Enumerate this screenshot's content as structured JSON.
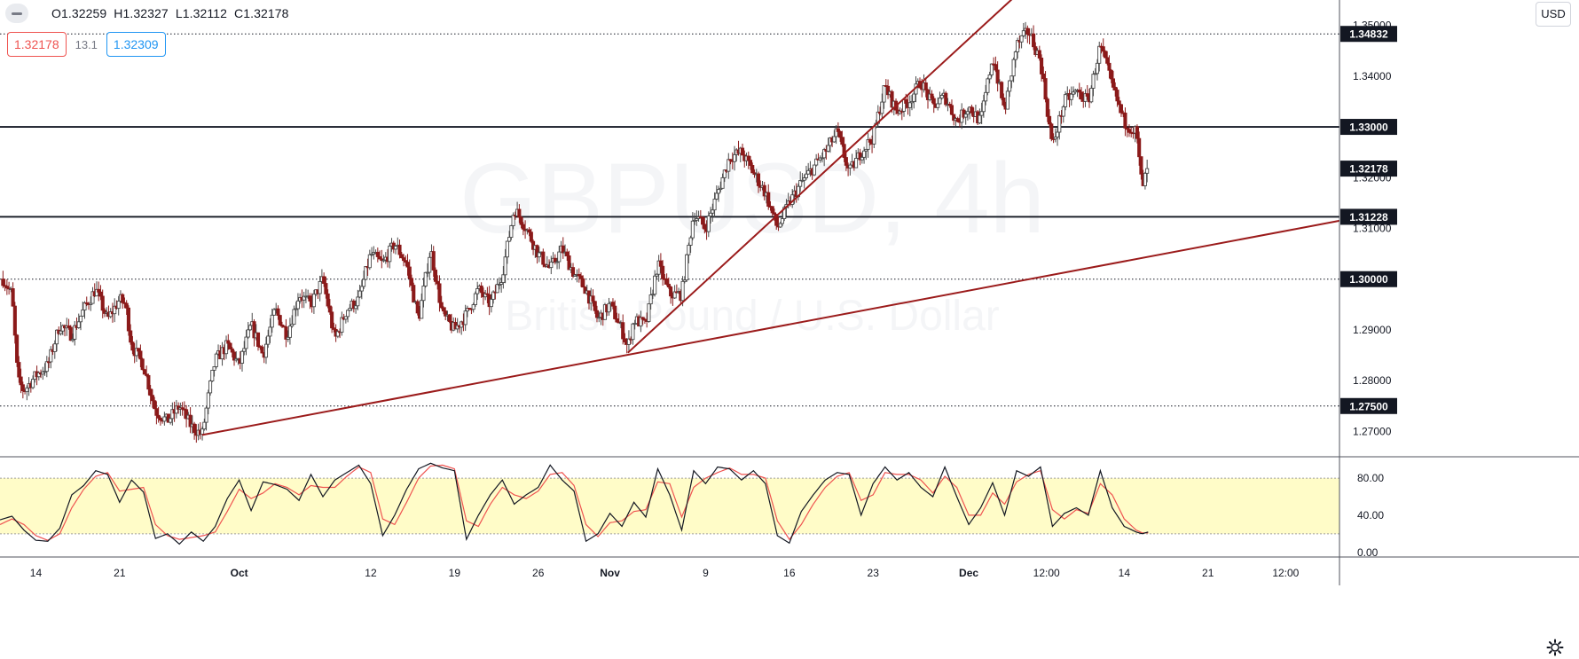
{
  "header": {
    "ohlc": {
      "open": "O1.32259",
      "high": "H1.32327",
      "low": "L1.32112",
      "close": "C1.32178"
    },
    "sell_price": "1.32178",
    "spread": "13.1",
    "buy_price": "1.32309"
  },
  "currency_button": "USD",
  "colors": {
    "up": "#26a69a",
    "down": "#ef5350",
    "candle": "#4a4a4a",
    "candle_bear": "#8b1a1a",
    "trendline": "#9b1b1b",
    "stoch_k": "#131722",
    "stoch_d": "#ef5350",
    "stoch_band": "#fffcc8"
  },
  "chart_data": [
    {
      "type": "candlestick",
      "title": "",
      "y_axis": {
        "min": 1.265,
        "max": 1.355,
        "ticks": [
          "1.35000",
          "1.34000",
          "1.33000",
          "1.32000",
          "1.31000",
          "1.30000",
          "1.29000",
          "1.28000",
          "1.27000"
        ]
      },
      "x_axis": {
        "ticks": [
          {
            "label": "14",
            "day": 0
          },
          {
            "label": "21",
            "day": 7
          },
          {
            "label": "Oct",
            "day": 17
          },
          {
            "label": "12",
            "day": 28
          },
          {
            "label": "19",
            "day": 35
          },
          {
            "label": "26",
            "day": 42
          },
          {
            "label": "Nov",
            "day": 48
          },
          {
            "label": "9",
            "day": 56
          },
          {
            "label": "16",
            "day": 63
          },
          {
            "label": "23",
            "day": 70
          },
          {
            "label": "Dec",
            "day": 78
          },
          {
            "label": "12:00",
            "day": 84.5
          },
          {
            "label": "14",
            "day": 91
          },
          {
            "label": "21",
            "day": 98
          },
          {
            "label": "12:00",
            "day": 104.5
          }
        ],
        "range_days": [
          -3,
          109
        ]
      },
      "horizontal_levels": [
        {
          "price": 1.34832,
          "label": "1.34832",
          "style": "dotted"
        },
        {
          "price": 1.33,
          "label": "1.33000",
          "style": "solid"
        },
        {
          "price": 1.31228,
          "label": "1.31228",
          "style": "solid"
        },
        {
          "price": 1.3,
          "label": "1.30000",
          "style": "dotted"
        },
        {
          "price": 1.275,
          "label": "1.27500",
          "style": "dotted"
        }
      ],
      "last_price": {
        "price": 1.32178,
        "label": "1.32178"
      },
      "trendlines": [
        {
          "from": [
            13.9,
            1.2693
          ],
          "to": [
            109,
            1.3115
          ]
        },
        {
          "from": [
            49.5,
            1.2855
          ],
          "to": [
            82,
            1.356
          ]
        }
      ],
      "watermark": "GBPUSD, 4h",
      "watermark_sub": "British Pound / U.S. Dollar",
      "close_path": [
        [
          -3,
          1.301
        ],
        [
          -2,
          1.297
        ],
        [
          -1.5,
          1.28
        ],
        [
          -1,
          1.278
        ],
        [
          0,
          1.281
        ],
        [
          1,
          1.283
        ],
        [
          2,
          1.291
        ],
        [
          3,
          1.289
        ],
        [
          4,
          1.294
        ],
        [
          5,
          1.298
        ],
        [
          6,
          1.292
        ],
        [
          7,
          1.296
        ],
        [
          7.5,
          1.295
        ],
        [
          8,
          1.287
        ],
        [
          9,
          1.283
        ],
        [
          10,
          1.274
        ],
        [
          11,
          1.272
        ],
        [
          12,
          1.275
        ],
        [
          13,
          1.271
        ],
        [
          13.9,
          1.2693
        ],
        [
          14.5,
          1.278
        ],
        [
          15,
          1.284
        ],
        [
          16,
          1.287
        ],
        [
          17,
          1.283
        ],
        [
          18,
          1.291
        ],
        [
          19,
          1.285
        ],
        [
          20,
          1.294
        ],
        [
          21,
          1.289
        ],
        [
          22,
          1.297
        ],
        [
          23,
          1.295
        ],
        [
          24,
          1.3
        ],
        [
          25,
          1.288
        ],
        [
          26,
          1.294
        ],
        [
          27,
          1.296
        ],
        [
          28,
          1.305
        ],
        [
          29,
          1.303
        ],
        [
          30,
          1.307
        ],
        [
          31,
          1.303
        ],
        [
          32,
          1.292
        ],
        [
          33,
          1.306
        ],
        [
          34,
          1.293
        ],
        [
          35,
          1.29
        ],
        [
          36,
          1.293
        ],
        [
          37,
          1.298
        ],
        [
          38,
          1.295
        ],
        [
          39,
          1.301
        ],
        [
          40,
          1.314
        ],
        [
          41,
          1.31
        ],
        [
          42,
          1.305
        ],
        [
          43,
          1.302
        ],
        [
          44,
          1.306
        ],
        [
          45,
          1.301
        ],
        [
          46,
          1.298
        ],
        [
          47,
          1.292
        ],
        [
          48,
          1.295
        ],
        [
          49,
          1.29
        ],
        [
          49.5,
          1.2865
        ],
        [
          50,
          1.292
        ],
        [
          51,
          1.291
        ],
        [
          52,
          1.303
        ],
        [
          53,
          1.297
        ],
        [
          54,
          1.297
        ],
        [
          55,
          1.313
        ],
        [
          56,
          1.31
        ],
        [
          57,
          1.317
        ],
        [
          58,
          1.324
        ],
        [
          59,
          1.325
        ],
        [
          60,
          1.321
        ],
        [
          61,
          1.317
        ],
        [
          62,
          1.31
        ],
        [
          63,
          1.315
        ],
        [
          64,
          1.319
        ],
        [
          65,
          1.322
        ],
        [
          66,
          1.325
        ],
        [
          67,
          1.329
        ],
        [
          68,
          1.321
        ],
        [
          69,
          1.325
        ],
        [
          70,
          1.328
        ],
        [
          71,
          1.338
        ],
        [
          72,
          1.333
        ],
        [
          73,
          1.335
        ],
        [
          74,
          1.339
        ],
        [
          75,
          1.334
        ],
        [
          76,
          1.336
        ],
        [
          77,
          1.331
        ],
        [
          78,
          1.334
        ],
        [
          79,
          1.331
        ],
        [
          80,
          1.344
        ],
        [
          81,
          1.333
        ],
        [
          82,
          1.346
        ],
        [
          83,
          1.349
        ],
        [
          84,
          1.343
        ],
        [
          85,
          1.326
        ],
        [
          86,
          1.335
        ],
        [
          87,
          1.337
        ],
        [
          88,
          1.335
        ],
        [
          89,
          1.346
        ],
        [
          90,
          1.338
        ],
        [
          91,
          1.331
        ],
        [
          92,
          1.329
        ],
        [
          92.5,
          1.318
        ],
        [
          93,
          1.3218
        ]
      ]
    },
    {
      "type": "line",
      "title": "",
      "y_axis": {
        "min": -5,
        "max": 103,
        "ticks": [
          "80.00",
          "40.00",
          "0.00"
        ]
      },
      "band": [
        20,
        80
      ],
      "series": [
        {
          "key": "k"
        },
        {
          "key": "d"
        }
      ],
      "k_path": [
        [
          -3,
          35
        ],
        [
          -2,
          39
        ],
        [
          -1,
          24
        ],
        [
          0,
          13
        ],
        [
          1,
          12
        ],
        [
          2,
          26
        ],
        [
          3,
          62
        ],
        [
          4,
          72
        ],
        [
          5,
          88
        ],
        [
          6,
          84
        ],
        [
          7,
          54
        ],
        [
          8,
          78
        ],
        [
          9,
          65
        ],
        [
          10,
          15
        ],
        [
          11,
          20
        ],
        [
          12,
          9
        ],
        [
          13,
          22
        ],
        [
          14,
          12
        ],
        [
          15,
          28
        ],
        [
          16,
          58
        ],
        [
          17,
          78
        ],
        [
          18,
          45
        ],
        [
          19,
          76
        ],
        [
          20,
          73
        ],
        [
          21,
          68
        ],
        [
          22,
          56
        ],
        [
          23,
          84
        ],
        [
          24,
          60
        ],
        [
          25,
          78
        ],
        [
          26,
          86
        ],
        [
          27,
          94
        ],
        [
          28,
          74
        ],
        [
          29,
          18
        ],
        [
          30,
          40
        ],
        [
          31,
          68
        ],
        [
          32,
          90
        ],
        [
          33,
          96
        ],
        [
          34,
          91
        ],
        [
          35,
          88
        ],
        [
          36,
          14
        ],
        [
          37,
          40
        ],
        [
          38,
          62
        ],
        [
          39,
          78
        ],
        [
          40,
          52
        ],
        [
          41,
          62
        ],
        [
          42,
          70
        ],
        [
          43,
          94
        ],
        [
          44,
          78
        ],
        [
          45,
          66
        ],
        [
          46,
          12
        ],
        [
          47,
          20
        ],
        [
          48,
          42
        ],
        [
          49,
          28
        ],
        [
          50,
          54
        ],
        [
          51,
          38
        ],
        [
          52,
          90
        ],
        [
          53,
          62
        ],
        [
          54,
          24
        ],
        [
          55,
          88
        ],
        [
          56,
          74
        ],
        [
          57,
          92
        ],
        [
          58,
          90
        ],
        [
          59,
          78
        ],
        [
          60,
          88
        ],
        [
          61,
          74
        ],
        [
          62,
          18
        ],
        [
          63,
          10
        ],
        [
          64,
          44
        ],
        [
          65,
          62
        ],
        [
          66,
          78
        ],
        [
          67,
          86
        ],
        [
          68,
          84
        ],
        [
          69,
          40
        ],
        [
          70,
          74
        ],
        [
          71,
          92
        ],
        [
          72,
          78
        ],
        [
          73,
          86
        ],
        [
          74,
          70
        ],
        [
          75,
          60
        ],
        [
          76,
          92
        ],
        [
          77,
          60
        ],
        [
          78,
          30
        ],
        [
          79,
          48
        ],
        [
          80,
          75
        ],
        [
          81,
          40
        ],
        [
          82,
          88
        ],
        [
          83,
          82
        ],
        [
          84,
          92
        ],
        [
          85,
          28
        ],
        [
          86,
          42
        ],
        [
          87,
          48
        ],
        [
          88,
          40
        ],
        [
          89,
          88
        ],
        [
          90,
          48
        ],
        [
          91,
          28
        ],
        [
          92,
          22
        ],
        [
          92.5,
          20
        ],
        [
          93,
          22
        ]
      ],
      "d_path": [
        [
          -3,
          30
        ],
        [
          -2,
          36
        ],
        [
          -1,
          30
        ],
        [
          0,
          18
        ],
        [
          1,
          13
        ],
        [
          2,
          20
        ],
        [
          3,
          48
        ],
        [
          4,
          68
        ],
        [
          5,
          82
        ],
        [
          6,
          86
        ],
        [
          7,
          66
        ],
        [
          8,
          68
        ],
        [
          9,
          70
        ],
        [
          10,
          30
        ],
        [
          11,
          18
        ],
        [
          12,
          14
        ],
        [
          13,
          16
        ],
        [
          14,
          18
        ],
        [
          15,
          22
        ],
        [
          16,
          44
        ],
        [
          17,
          68
        ],
        [
          18,
          58
        ],
        [
          19,
          64
        ],
        [
          20,
          74
        ],
        [
          21,
          70
        ],
        [
          22,
          62
        ],
        [
          23,
          72
        ],
        [
          24,
          70
        ],
        [
          25,
          70
        ],
        [
          26,
          82
        ],
        [
          27,
          92
        ],
        [
          28,
          86
        ],
        [
          29,
          36
        ],
        [
          30,
          30
        ],
        [
          31,
          54
        ],
        [
          32,
          80
        ],
        [
          33,
          93
        ],
        [
          34,
          94
        ],
        [
          35,
          90
        ],
        [
          36,
          34
        ],
        [
          37,
          28
        ],
        [
          38,
          52
        ],
        [
          39,
          70
        ],
        [
          40,
          62
        ],
        [
          41,
          58
        ],
        [
          42,
          66
        ],
        [
          43,
          84
        ],
        [
          44,
          86
        ],
        [
          45,
          72
        ],
        [
          46,
          30
        ],
        [
          47,
          17
        ],
        [
          48,
          32
        ],
        [
          49,
          34
        ],
        [
          50,
          44
        ],
        [
          51,
          46
        ],
        [
          52,
          76
        ],
        [
          53,
          74
        ],
        [
          54,
          38
        ],
        [
          55,
          70
        ],
        [
          56,
          80
        ],
        [
          57,
          86
        ],
        [
          58,
          91
        ],
        [
          59,
          84
        ],
        [
          60,
          84
        ],
        [
          61,
          80
        ],
        [
          62,
          34
        ],
        [
          63,
          14
        ],
        [
          64,
          30
        ],
        [
          65,
          52
        ],
        [
          66,
          70
        ],
        [
          67,
          82
        ],
        [
          68,
          86
        ],
        [
          69,
          56
        ],
        [
          70,
          62
        ],
        [
          71,
          86
        ],
        [
          72,
          84
        ],
        [
          73,
          84
        ],
        [
          74,
          78
        ],
        [
          75,
          64
        ],
        [
          76,
          82
        ],
        [
          77,
          70
        ],
        [
          78,
          40
        ],
        [
          79,
          40
        ],
        [
          80,
          64
        ],
        [
          81,
          52
        ],
        [
          82,
          76
        ],
        [
          83,
          84
        ],
        [
          84,
          88
        ],
        [
          85,
          46
        ],
        [
          86,
          36
        ],
        [
          87,
          46
        ],
        [
          88,
          42
        ],
        [
          89,
          74
        ],
        [
          90,
          62
        ],
        [
          91,
          36
        ],
        [
          92,
          24
        ],
        [
          92.5,
          21
        ],
        [
          93,
          21
        ]
      ]
    }
  ]
}
